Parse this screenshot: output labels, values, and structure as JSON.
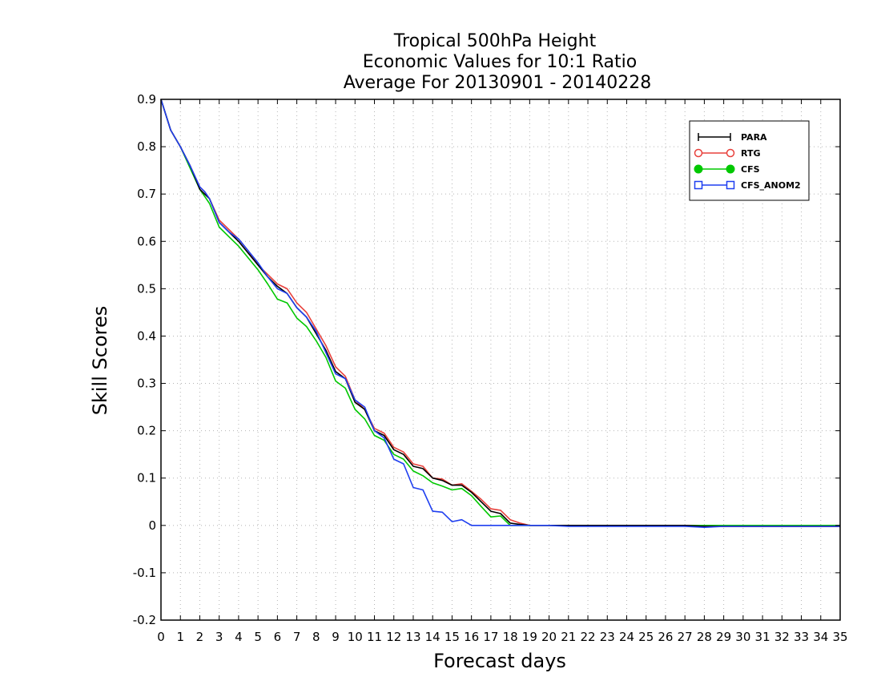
{
  "chart_data": {
    "type": "line",
    "title": [
      "Tropical 500hPa Height",
      "Economic Values for 10:1 Ratio",
      "Average For 20130901 - 20140228"
    ],
    "xlabel": "Forecast days",
    "ylabel": "Skill Scores",
    "xlim": [
      0,
      35
    ],
    "ylim": [
      -0.2,
      0.9
    ],
    "xticks": [
      "0",
      "1",
      "2",
      "3",
      "4",
      "5",
      "6",
      "7",
      "8",
      "9",
      "10",
      "11",
      "12",
      "13",
      "14",
      "15",
      "16",
      "17",
      "18",
      "19",
      "20",
      "21",
      "22",
      "23",
      "24",
      "25",
      "26",
      "27",
      "28",
      "29",
      "30",
      "31",
      "32",
      "33",
      "34",
      "35"
    ],
    "yticks": [
      "0.9",
      "0.8",
      "0.7",
      "0.6",
      "0.5",
      "0.4",
      "0.3",
      "0.2",
      "0.1",
      "0",
      "-0.1",
      "-0.2"
    ],
    "grid": true,
    "legend_position": "top-right",
    "colors": {
      "PARA": "#000000",
      "RTG": "#e8413c",
      "CFS": "#00c800",
      "CFS_ANOM2": "#1f3ff0"
    },
    "series": [
      {
        "name": "PARA",
        "marker": "plus",
        "points": [
          [
            0,
            0.9
          ],
          [
            0.5,
            0.835
          ],
          [
            1,
            0.8
          ],
          [
            1.5,
            0.76
          ],
          [
            2,
            0.71
          ],
          [
            2.25,
            0.7
          ],
          [
            2.5,
            0.69
          ],
          [
            3,
            0.64
          ],
          [
            3.5,
            0.62
          ],
          [
            4,
            0.6
          ],
          [
            4.5,
            0.575
          ],
          [
            5,
            0.55
          ],
          [
            5.5,
            0.525
          ],
          [
            6,
            0.505
          ],
          [
            6.5,
            0.49
          ],
          [
            7,
            0.46
          ],
          [
            7.5,
            0.44
          ],
          [
            8,
            0.405
          ],
          [
            8.5,
            0.37
          ],
          [
            9,
            0.325
          ],
          [
            9.5,
            0.31
          ],
          [
            10,
            0.26
          ],
          [
            10.5,
            0.245
          ],
          [
            11,
            0.2
          ],
          [
            11.5,
            0.19
          ],
          [
            12,
            0.16
          ],
          [
            12.5,
            0.15
          ],
          [
            13,
            0.125
          ],
          [
            13.5,
            0.12
          ],
          [
            14,
            0.1
          ],
          [
            14.5,
            0.095
          ],
          [
            15,
            0.085
          ],
          [
            15.5,
            0.085
          ],
          [
            16,
            0.07
          ],
          [
            16.5,
            0.05
          ],
          [
            17,
            0.03
          ],
          [
            17.5,
            0.025
          ],
          [
            18,
            0.005
          ],
          [
            18.5,
            0.002
          ],
          [
            19,
            0
          ],
          [
            20,
            0
          ],
          [
            21,
            0
          ],
          [
            22,
            0
          ],
          [
            23,
            0
          ],
          [
            24,
            0
          ],
          [
            25,
            0
          ],
          [
            26,
            0
          ],
          [
            27,
            0
          ],
          [
            28,
            -0.002
          ],
          [
            29,
            -0.002
          ],
          [
            30,
            -0.002
          ],
          [
            31,
            -0.002
          ],
          [
            32,
            -0.002
          ],
          [
            33,
            -0.002
          ],
          [
            34,
            -0.002
          ],
          [
            35,
            -0.002
          ]
        ]
      },
      {
        "name": "RTG",
        "marker": "circle-open",
        "points": [
          [
            0,
            0.9
          ],
          [
            0.5,
            0.835
          ],
          [
            1,
            0.8
          ],
          [
            1.5,
            0.76
          ],
          [
            2,
            0.715
          ],
          [
            2.25,
            0.705
          ],
          [
            2.5,
            0.69
          ],
          [
            3,
            0.645
          ],
          [
            3.5,
            0.625
          ],
          [
            4,
            0.605
          ],
          [
            4.5,
            0.58
          ],
          [
            5,
            0.55
          ],
          [
            5.5,
            0.53
          ],
          [
            6,
            0.51
          ],
          [
            6.5,
            0.5
          ],
          [
            7,
            0.47
          ],
          [
            7.5,
            0.45
          ],
          [
            8,
            0.415
          ],
          [
            8.5,
            0.38
          ],
          [
            9,
            0.335
          ],
          [
            9.5,
            0.315
          ],
          [
            10,
            0.265
          ],
          [
            10.5,
            0.245
          ],
          [
            11,
            0.205
          ],
          [
            11.5,
            0.195
          ],
          [
            12,
            0.165
          ],
          [
            12.5,
            0.155
          ],
          [
            13,
            0.13
          ],
          [
            13.5,
            0.125
          ],
          [
            14,
            0.1
          ],
          [
            14.5,
            0.098
          ],
          [
            15,
            0.085
          ],
          [
            15.5,
            0.088
          ],
          [
            16,
            0.072
          ],
          [
            16.5,
            0.055
          ],
          [
            17,
            0.035
          ],
          [
            17.5,
            0.032
          ],
          [
            18,
            0.012
          ],
          [
            18.5,
            0.005
          ],
          [
            19,
            0
          ],
          [
            20,
            0
          ],
          [
            21,
            0
          ],
          [
            22,
            0
          ],
          [
            23,
            0
          ],
          [
            24,
            0
          ],
          [
            25,
            0
          ],
          [
            26,
            0
          ],
          [
            27,
            0
          ],
          [
            28,
            -0.002
          ],
          [
            29,
            -0.002
          ],
          [
            30,
            -0.002
          ],
          [
            31,
            -0.002
          ],
          [
            32,
            -0.002
          ],
          [
            33,
            -0.002
          ],
          [
            34,
            -0.002
          ],
          [
            35,
            -0.002
          ]
        ]
      },
      {
        "name": "CFS",
        "marker": "circle-filled",
        "points": [
          [
            0,
            0.9
          ],
          [
            0.5,
            0.835
          ],
          [
            1,
            0.8
          ],
          [
            1.5,
            0.755
          ],
          [
            2,
            0.71
          ],
          [
            2.5,
            0.68
          ],
          [
            3,
            0.63
          ],
          [
            3.5,
            0.61
          ],
          [
            4,
            0.59
          ],
          [
            4.5,
            0.565
          ],
          [
            5,
            0.54
          ],
          [
            5.5,
            0.51
          ],
          [
            6,
            0.478
          ],
          [
            6.5,
            0.47
          ],
          [
            7,
            0.438
          ],
          [
            7.5,
            0.42
          ],
          [
            8,
            0.39
          ],
          [
            8.5,
            0.355
          ],
          [
            9,
            0.305
          ],
          [
            9.5,
            0.29
          ],
          [
            10,
            0.245
          ],
          [
            10.5,
            0.225
          ],
          [
            11,
            0.19
          ],
          [
            11.5,
            0.18
          ],
          [
            12,
            0.15
          ],
          [
            12.5,
            0.14
          ],
          [
            13,
            0.115
          ],
          [
            13.5,
            0.105
          ],
          [
            14,
            0.09
          ],
          [
            14.5,
            0.083
          ],
          [
            15,
            0.075
          ],
          [
            15.5,
            0.078
          ],
          [
            16,
            0.063
          ],
          [
            16.5,
            0.04
          ],
          [
            17,
            0.018
          ],
          [
            17.5,
            0.02
          ],
          [
            18,
            0
          ],
          [
            19,
            0
          ],
          [
            20,
            0
          ],
          [
            21,
            0
          ],
          [
            22,
            0
          ],
          [
            23,
            0
          ],
          [
            24,
            0
          ],
          [
            25,
            0
          ],
          [
            26,
            0
          ],
          [
            27,
            0
          ],
          [
            28,
            0
          ],
          [
            29,
            0
          ],
          [
            30,
            0
          ],
          [
            31,
            0
          ],
          [
            32,
            0
          ],
          [
            33,
            0
          ],
          [
            34,
            0
          ],
          [
            35,
            0
          ]
        ]
      },
      {
        "name": "CFS_ANOM2",
        "marker": "square-open",
        "points": [
          [
            0,
            0.9
          ],
          [
            0.5,
            0.835
          ],
          [
            1,
            0.8
          ],
          [
            1.5,
            0.76
          ],
          [
            2,
            0.715
          ],
          [
            2.25,
            0.705
          ],
          [
            2.5,
            0.69
          ],
          [
            3,
            0.64
          ],
          [
            3.5,
            0.62
          ],
          [
            4,
            0.605
          ],
          [
            4.5,
            0.58
          ],
          [
            5,
            0.555
          ],
          [
            5.5,
            0.525
          ],
          [
            6,
            0.5
          ],
          [
            6.5,
            0.49
          ],
          [
            7,
            0.46
          ],
          [
            7.5,
            0.44
          ],
          [
            8,
            0.41
          ],
          [
            8.5,
            0.365
          ],
          [
            9,
            0.32
          ],
          [
            9.5,
            0.31
          ],
          [
            10,
            0.265
          ],
          [
            10.5,
            0.25
          ],
          [
            11,
            0.2
          ],
          [
            11.5,
            0.185
          ],
          [
            12,
            0.14
          ],
          [
            12.5,
            0.13
          ],
          [
            13,
            0.08
          ],
          [
            13.5,
            0.075
          ],
          [
            14,
            0.03
          ],
          [
            14.5,
            0.028
          ],
          [
            15,
            0.008
          ],
          [
            15.5,
            0.012
          ],
          [
            16,
            0
          ],
          [
            17,
            0
          ],
          [
            18,
            0
          ],
          [
            19,
            0
          ],
          [
            20,
            0
          ],
          [
            21,
            -0.002
          ],
          [
            22,
            -0.002
          ],
          [
            23,
            -0.002
          ],
          [
            24,
            -0.002
          ],
          [
            25,
            -0.002
          ],
          [
            26,
            -0.002
          ],
          [
            27,
            -0.002
          ],
          [
            28,
            -0.004
          ],
          [
            29,
            -0.002
          ],
          [
            30,
            -0.002
          ],
          [
            31,
            -0.002
          ],
          [
            32,
            -0.002
          ],
          [
            33,
            -0.002
          ],
          [
            34,
            -0.002
          ],
          [
            35,
            -0.002
          ]
        ]
      }
    ]
  }
}
